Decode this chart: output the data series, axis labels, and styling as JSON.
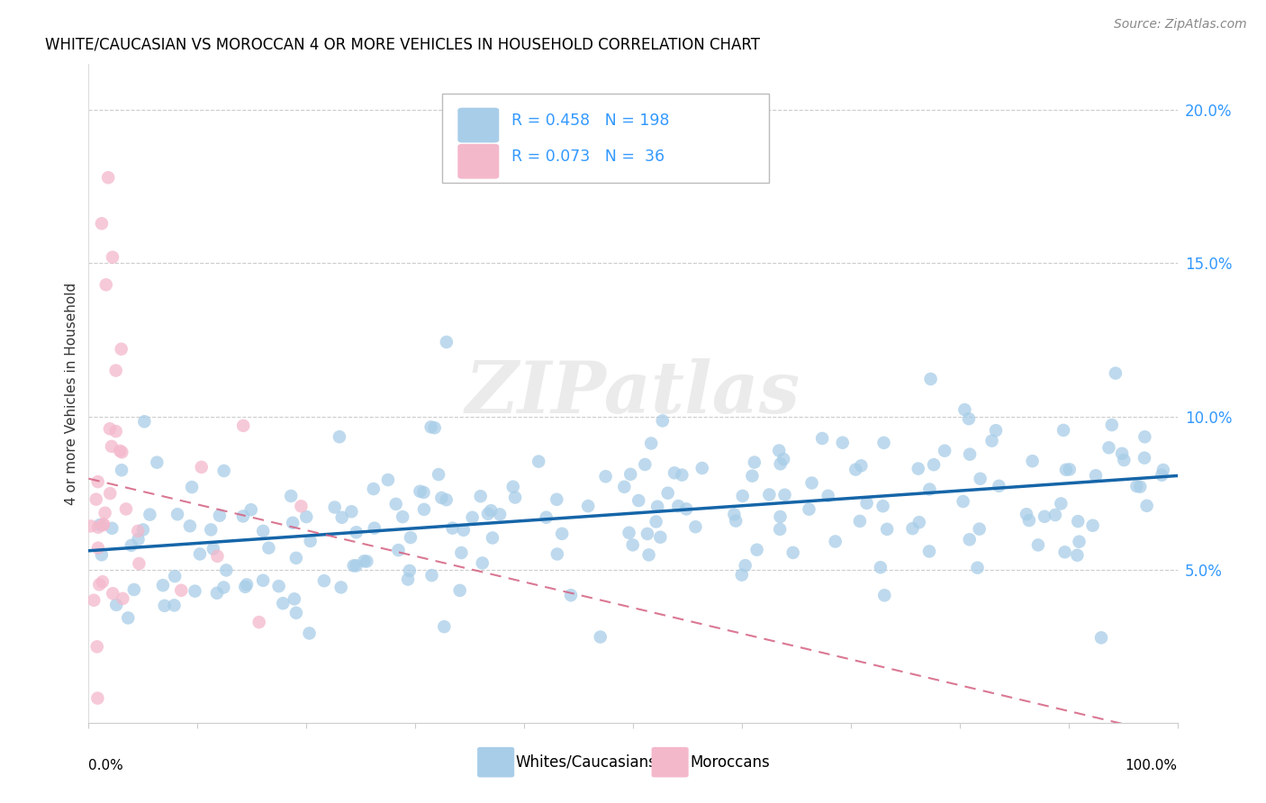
{
  "title": "WHITE/CAUCASIAN VS MOROCCAN 4 OR MORE VEHICLES IN HOUSEHOLD CORRELATION CHART",
  "source": "Source: ZipAtlas.com",
  "ylabel": "4 or more Vehicles in Household",
  "watermark": "ZIPatlas",
  "legend_blue_label": "Whites/Caucasians",
  "legend_pink_label": "Moroccans",
  "blue_color": "#a8cde8",
  "pink_color": "#f4b8cb",
  "line_blue_color": "#1565a8",
  "line_pink_color": "#d46080",
  "yaxis_color": "#3399ff",
  "ytick_labels": [
    "5.0%",
    "10.0%",
    "15.0%",
    "20.0%"
  ],
  "ytick_values": [
    0.05,
    0.1,
    0.15,
    0.2
  ],
  "xlim": [
    0.0,
    1.0
  ],
  "ylim": [
    0.0,
    0.215
  ],
  "blue_R": 0.458,
  "blue_N": 198,
  "pink_R": 0.073,
  "pink_N": 36,
  "legend_R_blue": "0.458",
  "legend_N_blue": "198",
  "legend_R_pink": "0.073",
  "legend_N_pink": " 36"
}
